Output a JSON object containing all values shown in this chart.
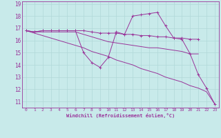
{
  "background_color": "#c8eaea",
  "grid_color": "#b0d8d8",
  "line_color": "#993399",
  "xlabel": "Windchill (Refroidissement éolien,°C)",
  "xlim": [
    -0.5,
    23.5
  ],
  "ylim": [
    10.5,
    19.2
  ],
  "yticks": [
    11,
    12,
    13,
    14,
    15,
    16,
    17,
    18,
    19
  ],
  "xticks": [
    0,
    1,
    2,
    3,
    4,
    5,
    6,
    7,
    8,
    9,
    10,
    11,
    12,
    13,
    14,
    15,
    16,
    17,
    18,
    19,
    20,
    21,
    22,
    23
  ],
  "lines": [
    {
      "x": [
        0,
        1,
        2,
        3,
        4,
        5,
        6,
        7,
        8,
        9,
        10,
        11,
        12,
        13,
        14,
        15,
        16,
        17,
        18,
        19,
        20,
        21
      ],
      "y": [
        16.8,
        16.7,
        16.8,
        16.8,
        16.8,
        16.8,
        16.8,
        16.8,
        16.7,
        16.6,
        16.6,
        16.6,
        16.5,
        16.5,
        16.4,
        16.4,
        16.3,
        16.3,
        16.2,
        16.2,
        16.1,
        16.1
      ],
      "marker": true
    },
    {
      "x": [
        0,
        1,
        2,
        3,
        4,
        5,
        6,
        7,
        8,
        9,
        10,
        11,
        12,
        13,
        14,
        15,
        16,
        17,
        18,
        19,
        20,
        21,
        22,
        23
      ],
      "y": [
        16.8,
        16.7,
        16.7,
        16.7,
        16.7,
        16.7,
        16.7,
        16.5,
        16.3,
        16.1,
        15.9,
        15.8,
        15.7,
        15.6,
        15.5,
        15.4,
        15.4,
        15.3,
        15.2,
        15.1,
        14.9,
        14.9,
        null,
        null
      ],
      "marker": false
    },
    {
      "x": [
        0,
        1,
        2,
        3,
        4,
        5,
        6,
        7,
        8,
        9,
        10,
        11,
        12,
        13,
        14,
        15,
        16,
        17,
        18,
        19,
        20,
        21,
        22,
        23
      ],
      "y": [
        16.8,
        16.6,
        16.4,
        16.2,
        16.0,
        15.8,
        15.6,
        15.4,
        15.1,
        14.9,
        14.7,
        14.4,
        14.2,
        14.0,
        13.7,
        13.5,
        13.3,
        13.0,
        12.8,
        12.6,
        12.3,
        12.1,
        11.8,
        10.8
      ],
      "marker": false
    },
    {
      "x": [
        0,
        1,
        2,
        3,
        4,
        5,
        6,
        7,
        8,
        9,
        10,
        11,
        12,
        13,
        14,
        15,
        16,
        17,
        18,
        19,
        20,
        21,
        22,
        23
      ],
      "y": [
        16.8,
        16.7,
        16.8,
        16.8,
        16.8,
        16.8,
        16.8,
        15.0,
        14.2,
        13.8,
        14.6,
        16.7,
        16.5,
        18.0,
        18.1,
        18.2,
        18.3,
        17.2,
        16.2,
        16.1,
        14.9,
        13.2,
        12.1,
        10.8
      ],
      "marker": true
    }
  ]
}
